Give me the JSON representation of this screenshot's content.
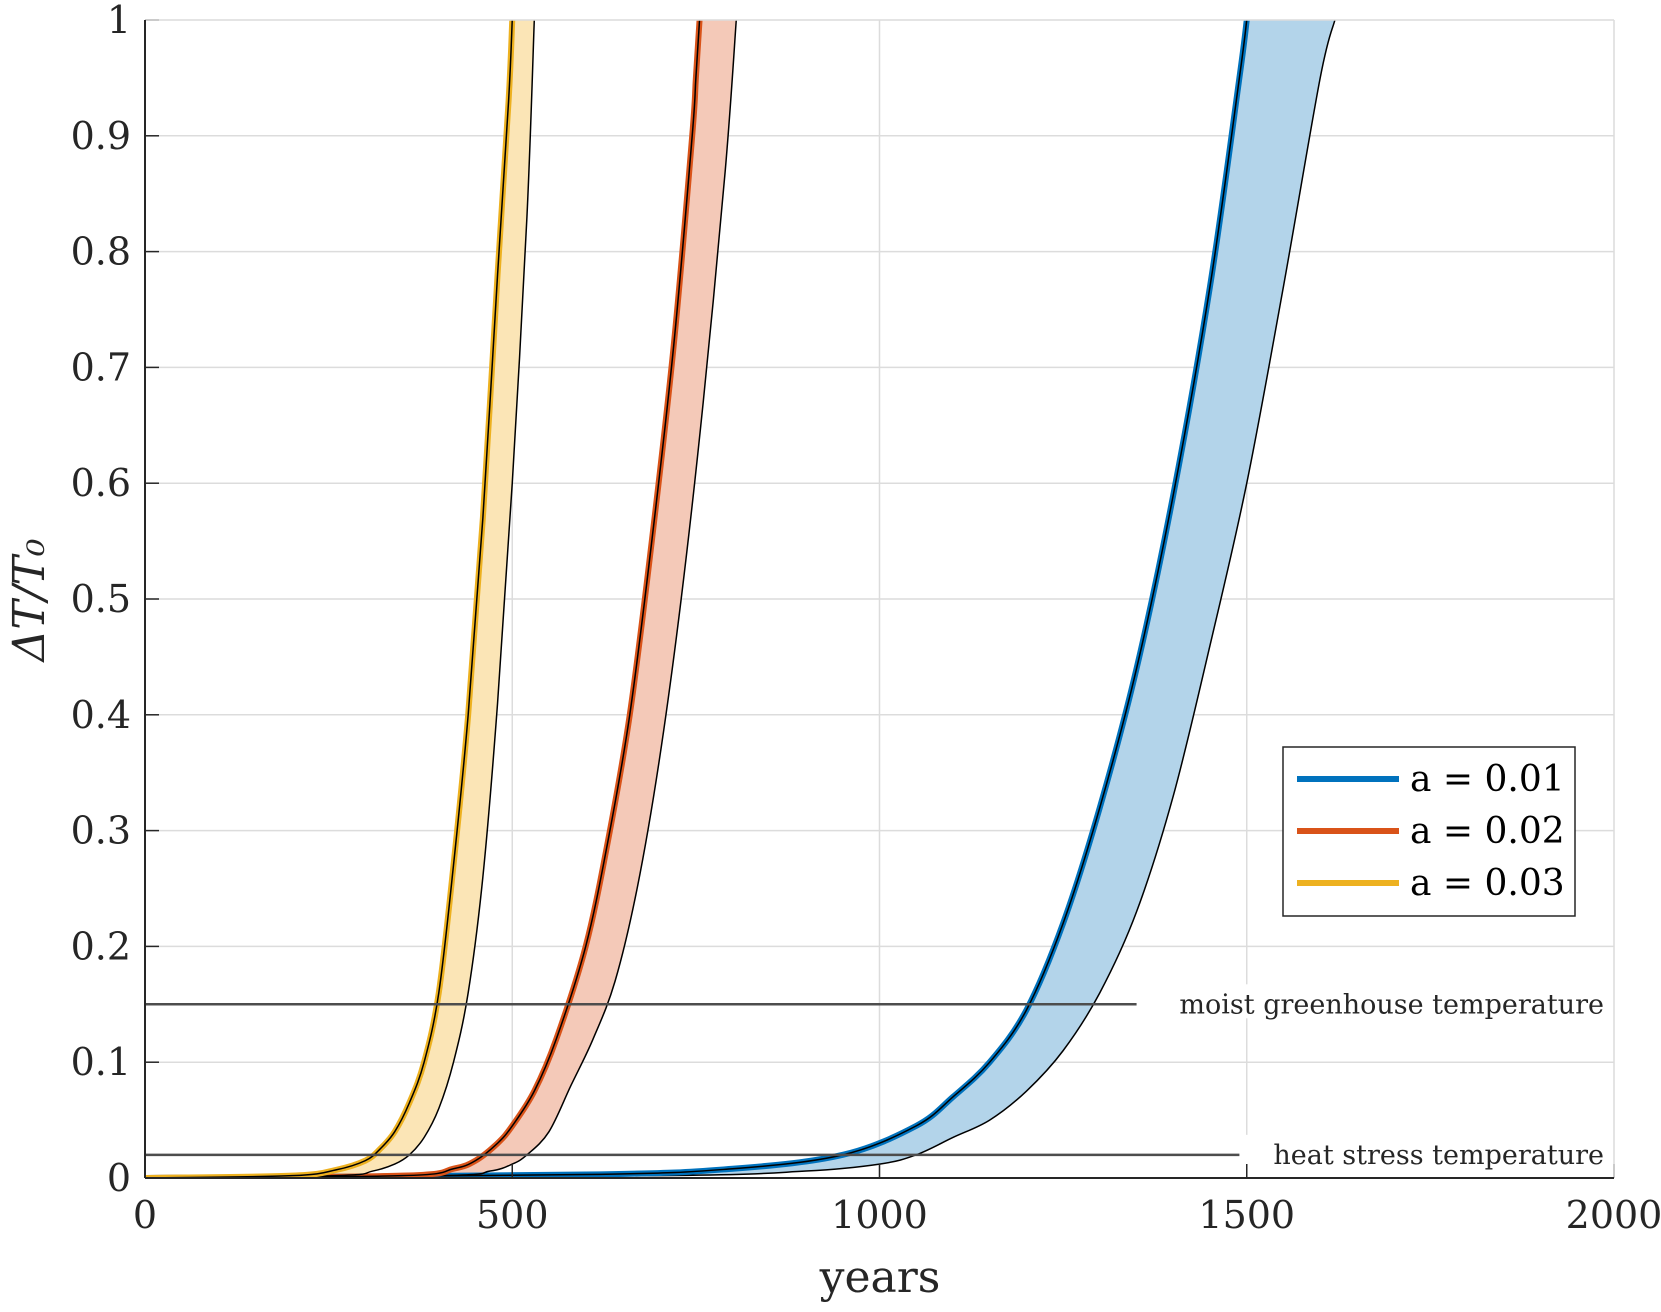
{
  "chart_data": {
    "type": "line",
    "xlabel": "years",
    "ylabel": "ΔT/T₀",
    "xlim": [
      0,
      2000
    ],
    "ylim": [
      0,
      1
    ],
    "xticks": [
      "0",
      "500",
      "1000",
      "1500",
      "2000"
    ],
    "yticks": [
      "0",
      "0.1",
      "0.2",
      "0.3",
      "0.4",
      "0.5",
      "0.6",
      "0.7",
      "0.8",
      "0.9",
      "1"
    ],
    "grid": true,
    "legend_position": "right",
    "series": [
      {
        "name": "a = 0.01",
        "color": "#0072BD",
        "fill": "#B3D4EA",
        "lower": [
          [
            0,
            0
          ],
          [
            600,
            0.003
          ],
          [
            800,
            0.008
          ],
          [
            950,
            0.02
          ],
          [
            1050,
            0.045
          ],
          [
            1100,
            0.07
          ],
          [
            1150,
            0.1
          ],
          [
            1200,
            0.145
          ],
          [
            1250,
            0.22
          ],
          [
            1300,
            0.32
          ],
          [
            1350,
            0.44
          ],
          [
            1400,
            0.59
          ],
          [
            1450,
            0.77
          ],
          [
            1490,
            0.95
          ],
          [
            1500,
            1.0
          ]
        ],
        "upper": [
          [
            0,
            0
          ],
          [
            700,
            0.002
          ],
          [
            900,
            0.006
          ],
          [
            1000,
            0.012
          ],
          [
            1050,
            0.02
          ],
          [
            1100,
            0.035
          ],
          [
            1150,
            0.05
          ],
          [
            1200,
            0.075
          ],
          [
            1250,
            0.11
          ],
          [
            1300,
            0.16
          ],
          [
            1350,
            0.23
          ],
          [
            1400,
            0.33
          ],
          [
            1450,
            0.46
          ],
          [
            1500,
            0.6
          ],
          [
            1550,
            0.77
          ],
          [
            1600,
            0.95
          ],
          [
            1620,
            1.0
          ]
        ]
      },
      {
        "name": "a = 0.02",
        "color": "#D95319",
        "fill": "#F4C9B8",
        "lower": [
          [
            0,
            0
          ],
          [
            350,
            0.002
          ],
          [
            420,
            0.008
          ],
          [
            450,
            0.015
          ],
          [
            480,
            0.03
          ],
          [
            500,
            0.045
          ],
          [
            530,
            0.075
          ],
          [
            560,
            0.12
          ],
          [
            600,
            0.2
          ],
          [
            630,
            0.29
          ],
          [
            660,
            0.4
          ],
          [
            690,
            0.55
          ],
          [
            720,
            0.72
          ],
          [
            745,
            0.9
          ],
          [
            750,
            0.95
          ],
          [
            755,
            1.0
          ]
        ],
        "upper": [
          [
            0,
            0
          ],
          [
            400,
            0.002
          ],
          [
            470,
            0.006
          ],
          [
            500,
            0.012
          ],
          [
            520,
            0.02
          ],
          [
            550,
            0.04
          ],
          [
            580,
            0.08
          ],
          [
            610,
            0.12
          ],
          [
            640,
            0.17
          ],
          [
            670,
            0.25
          ],
          [
            700,
            0.36
          ],
          [
            730,
            0.5
          ],
          [
            760,
            0.67
          ],
          [
            790,
            0.87
          ],
          [
            805,
            1.0
          ]
        ]
      },
      {
        "name": "a = 0.03",
        "color": "#EDB120",
        "fill": "#FBE5B6",
        "lower": [
          [
            0,
            0
          ],
          [
            200,
            0.002
          ],
          [
            260,
            0.007
          ],
          [
            300,
            0.015
          ],
          [
            320,
            0.025
          ],
          [
            340,
            0.04
          ],
          [
            360,
            0.065
          ],
          [
            380,
            0.1
          ],
          [
            400,
            0.16
          ],
          [
            420,
            0.27
          ],
          [
            440,
            0.4
          ],
          [
            460,
            0.57
          ],
          [
            480,
            0.78
          ],
          [
            495,
            0.93
          ],
          [
            500,
            1.0
          ]
        ],
        "upper": [
          [
            0,
            0
          ],
          [
            260,
            0.002
          ],
          [
            310,
            0.006
          ],
          [
            340,
            0.012
          ],
          [
            360,
            0.02
          ],
          [
            380,
            0.035
          ],
          [
            400,
            0.06
          ],
          [
            420,
            0.1
          ],
          [
            440,
            0.16
          ],
          [
            460,
            0.26
          ],
          [
            480,
            0.41
          ],
          [
            500,
            0.6
          ],
          [
            520,
            0.83
          ],
          [
            530,
            1.0
          ]
        ]
      }
    ],
    "reference_lines": [
      {
        "label": "moist greenhouse temperature",
        "y": 0.15,
        "x_end": 1350
      },
      {
        "label": "heat stress temperature",
        "y": 0.02,
        "x_end": 1490
      }
    ]
  }
}
